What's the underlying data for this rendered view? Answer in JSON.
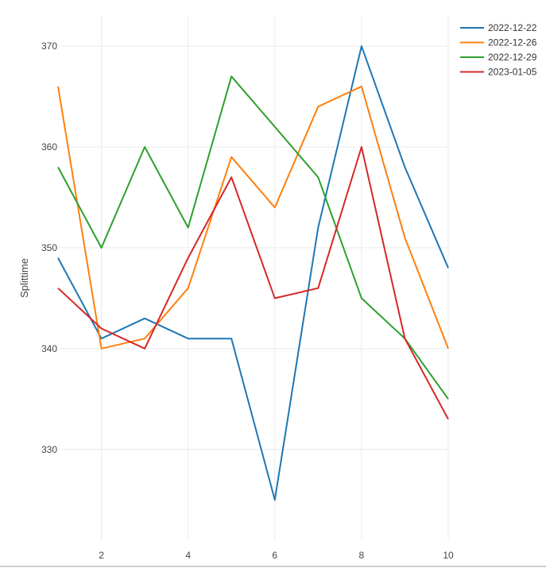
{
  "chart_data": {
    "type": "line",
    "title": "",
    "xlabel": "",
    "ylabel": "Splittime",
    "xlim": [
      1,
      10
    ],
    "ylim": [
      321,
      373
    ],
    "x_ticks": [
      2,
      4,
      6,
      8,
      10
    ],
    "y_ticks": [
      330,
      340,
      350,
      360,
      370
    ],
    "grid": true,
    "legend_position": "top-right",
    "x": [
      1,
      2,
      3,
      4,
      5,
      6,
      7,
      8,
      9,
      10
    ],
    "series": [
      {
        "name": "2022-12-22",
        "color": "#1f77b4",
        "values": [
          349,
          341,
          343,
          341,
          341,
          325,
          352,
          370,
          358,
          348
        ]
      },
      {
        "name": "2022-12-26",
        "color": "#ff7f0e",
        "values": [
          366,
          340,
          341,
          346,
          359,
          354,
          364,
          366,
          351,
          340
        ]
      },
      {
        "name": "2022-12-29",
        "color": "#2ca02c",
        "values": [
          358,
          350,
          360,
          352,
          367,
          362,
          357,
          345,
          341,
          335
        ]
      },
      {
        "name": "2023-01-05",
        "color": "#d62728",
        "values": [
          346,
          342,
          340,
          349,
          357,
          345,
          346,
          360,
          341,
          333
        ]
      }
    ]
  }
}
